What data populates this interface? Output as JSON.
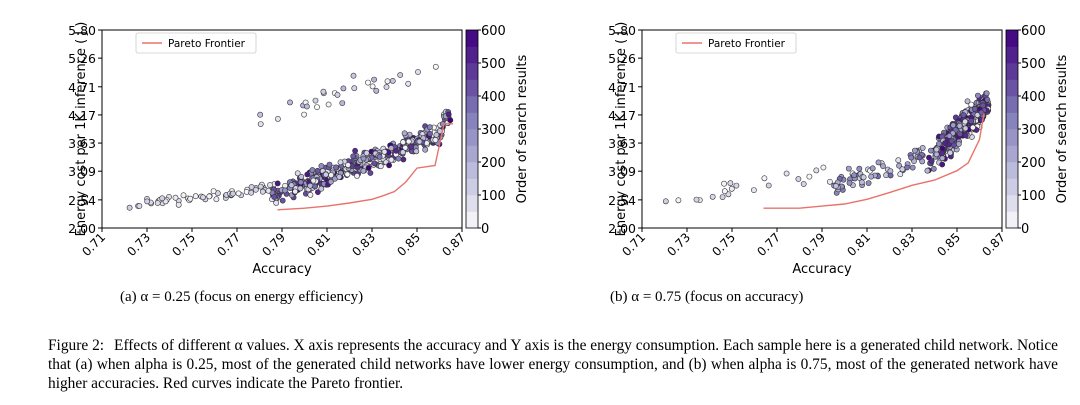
{
  "chart_data": [
    {
      "type": "scatter",
      "id": "a",
      "xlabel": "Accuracy",
      "ylabel": "Energy cost per 1K inference ( J )",
      "xlim": [
        0.71,
        0.87
      ],
      "ylim": [
        2.0,
        5.8
      ],
      "xticks": [
        "0.71",
        "0.73",
        "0.75",
        "0.77",
        "0.79",
        "0.81",
        "0.83",
        "0.85",
        "0.87"
      ],
      "yticks": [
        "2.00",
        "2.54",
        "3.09",
        "3.63",
        "4.17",
        "4.71",
        "5.26",
        "5.80"
      ],
      "legend": "Pareto Frontier",
      "colorbar_label": "Order of search results",
      "colorbar_ticks": [
        "0",
        "100",
        "200",
        "300",
        "400",
        "500",
        "600"
      ],
      "colorbar_range": [
        0,
        600
      ],
      "pareto_frontier": [
        [
          0.788,
          2.35
        ],
        [
          0.8,
          2.38
        ],
        [
          0.81,
          2.42
        ],
        [
          0.82,
          2.48
        ],
        [
          0.83,
          2.55
        ],
        [
          0.835,
          2.62
        ],
        [
          0.84,
          2.7
        ],
        [
          0.845,
          2.88
        ],
        [
          0.85,
          3.15
        ],
        [
          0.858,
          3.2
        ],
        [
          0.862,
          4.0
        ],
        [
          0.866,
          4.0
        ]
      ],
      "scatter_clusters": [
        {
          "description": "main cloud",
          "x_range": [
            0.785,
            0.865
          ],
          "y_center_start": 2.6,
          "y_center_end": 3.9,
          "spread": 0.35,
          "count": 380,
          "color_order_range": [
            0,
            600
          ]
        },
        {
          "description": "low accuracy cluster",
          "x_range": [
            0.72,
            0.785
          ],
          "y_center_start": 2.45,
          "y_center_end": 2.75,
          "spread": 0.15,
          "count": 55,
          "color_order_range": [
            0,
            150
          ]
        },
        {
          "description": "high energy outliers",
          "x_range": [
            0.78,
            0.86
          ],
          "y_center_start": 4.1,
          "y_center_end": 5.1,
          "spread": 0.4,
          "count": 30,
          "color_order_range": [
            0,
            200
          ]
        }
      ]
    },
    {
      "type": "scatter",
      "id": "b",
      "xlabel": "Accuracy",
      "ylabel": "Energy cost per 1K inference ( J )",
      "xlim": [
        0.71,
        0.87
      ],
      "ylim": [
        2.0,
        5.8
      ],
      "xticks": [
        "0.71",
        "0.73",
        "0.75",
        "0.77",
        "0.79",
        "0.81",
        "0.83",
        "0.85",
        "0.87"
      ],
      "yticks": [
        "2.00",
        "2.54",
        "3.09",
        "3.63",
        "4.17",
        "4.71",
        "5.26",
        "5.80"
      ],
      "legend": "Pareto Frontier",
      "colorbar_label": "Order of search results",
      "colorbar_ticks": [
        "0",
        "100",
        "200",
        "300",
        "400",
        "500",
        "600"
      ],
      "colorbar_range": [
        0,
        600
      ],
      "pareto_frontier": [
        [
          0.764,
          2.38
        ],
        [
          0.78,
          2.38
        ],
        [
          0.79,
          2.42
        ],
        [
          0.8,
          2.46
        ],
        [
          0.81,
          2.55
        ],
        [
          0.82,
          2.68
        ],
        [
          0.83,
          2.82
        ],
        [
          0.84,
          2.92
        ],
        [
          0.85,
          3.1
        ],
        [
          0.855,
          3.25
        ],
        [
          0.86,
          3.7
        ],
        [
          0.862,
          4.2
        ]
      ],
      "scatter_clusters": [
        {
          "description": "main cloud",
          "x_range": [
            0.835,
            0.864
          ],
          "y_center_start": 3.2,
          "y_center_end": 4.4,
          "spread": 0.45,
          "count": 360,
          "color_order_range": [
            0,
            600
          ]
        },
        {
          "description": "mid cluster",
          "x_range": [
            0.795,
            0.835
          ],
          "y_center_start": 2.8,
          "y_center_end": 3.4,
          "spread": 0.3,
          "count": 70,
          "color_order_range": [
            0,
            400
          ]
        },
        {
          "description": "low accuracy sparse",
          "x_range": [
            0.72,
            0.795
          ],
          "y_center_start": 2.5,
          "y_center_end": 3.1,
          "spread": 0.3,
          "count": 22,
          "color_order_range": [
            0,
            120
          ]
        }
      ]
    }
  ],
  "subcaptions": {
    "a": "(a) α = 0.25 (focus on energy efficiency)",
    "b": "(b) α = 0.75 (focus on accuracy)"
  },
  "caption": {
    "label": "Figure 2:",
    "text": "Effects of different α values. X axis represents the accuracy and Y axis is the energy consumption. Each sample here is a generated child network. Notice that (a) when alpha is 0.25, most of the generated child networks have lower energy consumption, and (b) when alpha is 0.75, most of the generated network have higher accuracies. Red curves indicate the Pareto frontier."
  },
  "colors": {
    "pareto": "#e8736b",
    "point_low": "#f0f0f8",
    "point_high": "#3f007d",
    "axis": "#000000"
  }
}
